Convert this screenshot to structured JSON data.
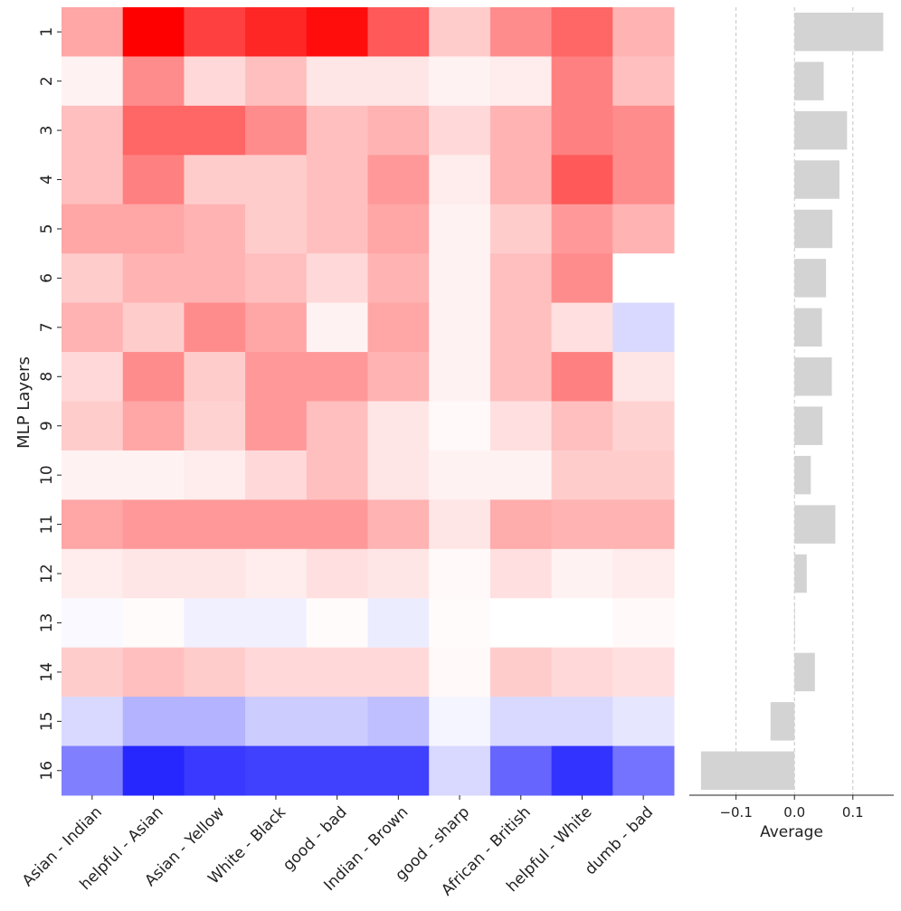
{
  "chart_data": [
    {
      "type": "heatmap",
      "title": "",
      "ylabel": "MLP Layers",
      "xlabel": "",
      "rows": [
        "1",
        "2",
        "3",
        "4",
        "5",
        "6",
        "7",
        "8",
        "9",
        "10",
        "11",
        "12",
        "13",
        "14",
        "15",
        "16"
      ],
      "columns": [
        "Asian - Indian",
        "helpful - Asian",
        "Asian - Yellow",
        "White - Black",
        "good - bad",
        "Indian - Brown",
        "good - sharp",
        "African - British",
        "helpful - White",
        "dumb - bad"
      ],
      "colormap": "bwr",
      "vlim": [
        -0.2,
        0.2
      ],
      "colors": {
        "negative": "#0000ff",
        "neutral": "#ffffff",
        "positive": "#ff0000"
      },
      "values": [
        [
          0.07,
          0.2,
          0.15,
          0.17,
          0.19,
          0.13,
          0.04,
          0.09,
          0.12,
          0.06
        ],
        [
          0.01,
          0.09,
          0.03,
          0.05,
          0.02,
          0.02,
          0.01,
          0.015,
          0.1,
          0.05
        ],
        [
          0.05,
          0.12,
          0.12,
          0.09,
          0.05,
          0.06,
          0.03,
          0.06,
          0.1,
          0.09
        ],
        [
          0.05,
          0.1,
          0.04,
          0.04,
          0.05,
          0.08,
          0.015,
          0.06,
          0.13,
          0.09
        ],
        [
          0.07,
          0.07,
          0.06,
          0.04,
          0.05,
          0.07,
          0.01,
          0.04,
          0.08,
          0.06
        ],
        [
          0.04,
          0.06,
          0.06,
          0.05,
          0.03,
          0.06,
          0.01,
          0.05,
          0.09,
          0.0
        ],
        [
          0.06,
          0.04,
          0.09,
          0.07,
          0.01,
          0.07,
          0.01,
          0.05,
          0.025,
          -0.03
        ],
        [
          0.03,
          0.09,
          0.04,
          0.08,
          0.08,
          0.06,
          0.01,
          0.05,
          0.1,
          0.02
        ],
        [
          0.04,
          0.07,
          0.035,
          0.08,
          0.05,
          0.02,
          0.005,
          0.025,
          0.05,
          0.035
        ],
        [
          0.01,
          0.01,
          0.015,
          0.03,
          0.05,
          0.02,
          0.01,
          0.01,
          0.04,
          0.04
        ],
        [
          0.07,
          0.08,
          0.08,
          0.08,
          0.08,
          0.06,
          0.02,
          0.065,
          0.06,
          0.06
        ],
        [
          0.015,
          0.02,
          0.02,
          0.015,
          0.025,
          0.02,
          0.005,
          0.025,
          0.01,
          0.015
        ],
        [
          -0.005,
          0.003,
          -0.012,
          -0.012,
          0.003,
          -0.015,
          0.003,
          0.0,
          0.0,
          0.005
        ],
        [
          0.04,
          0.05,
          0.04,
          0.03,
          0.03,
          0.03,
          0.005,
          0.04,
          0.03,
          0.025
        ],
        [
          -0.03,
          -0.06,
          -0.06,
          -0.04,
          -0.04,
          -0.05,
          -0.008,
          -0.03,
          -0.03,
          -0.02
        ],
        [
          -0.1,
          -0.17,
          -0.155,
          -0.15,
          -0.15,
          -0.15,
          -0.03,
          -0.12,
          -0.16,
          -0.11
        ]
      ]
    },
    {
      "type": "bar",
      "orientation": "horizontal",
      "title": "",
      "xlabel": "Average",
      "ylabel": "",
      "categories": [
        "1",
        "2",
        "3",
        "4",
        "5",
        "6",
        "7",
        "8",
        "9",
        "10",
        "11",
        "12",
        "13",
        "14",
        "15",
        "16"
      ],
      "values": [
        0.152,
        0.05,
        0.09,
        0.077,
        0.065,
        0.054,
        0.047,
        0.064,
        0.048,
        0.028,
        0.07,
        0.021,
        0.001,
        0.035,
        -0.041,
        -0.16
      ],
      "xlim": [
        -0.18,
        0.17
      ],
      "xticks": [
        -0.1,
        0.0,
        0.1
      ],
      "xtick_labels": [
        "−0.1",
        "0.0",
        "0.1"
      ],
      "grid": "vertical-dashed",
      "bar_color": "#d3d3d3"
    }
  ]
}
